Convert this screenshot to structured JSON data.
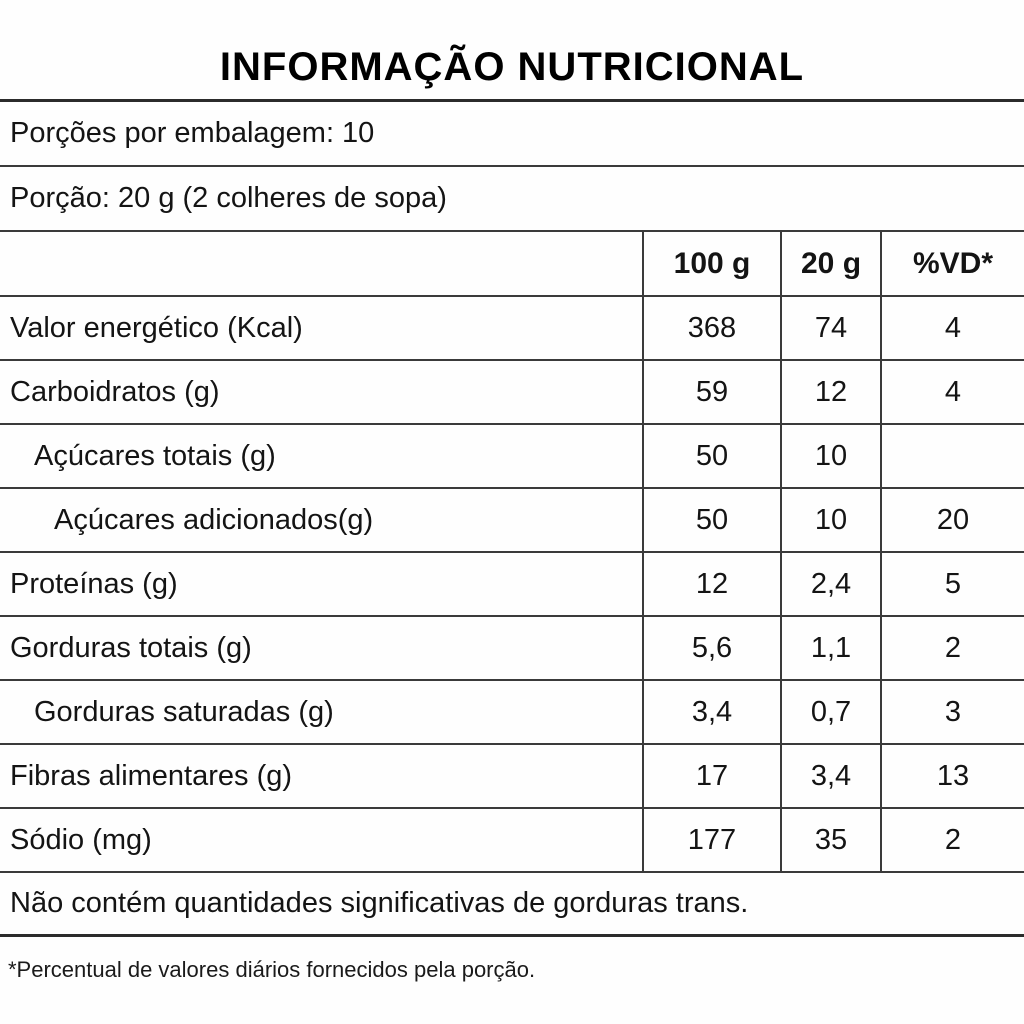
{
  "title": "INFORMAÇÃO NUTRICIONAL",
  "servings_line": "Porções por embalagem: 10",
  "portion_line": "Porção: 20 g (2 colheres de sopa)",
  "table": {
    "columns": {
      "label": "",
      "per100": "100 g",
      "per20": "20 g",
      "vd": "%VD*"
    },
    "rows": [
      {
        "label": "Valor energético (Kcal)",
        "indent": 0,
        "per100": "368",
        "per20": "74",
        "vd": "4"
      },
      {
        "label": "Carboidratos (g)",
        "indent": 0,
        "per100": "59",
        "per20": "12",
        "vd": "4"
      },
      {
        "label": "Açúcares totais (g)",
        "indent": 1,
        "per100": "50",
        "per20": "10",
        "vd": ""
      },
      {
        "label": "Açúcares adicionados(g)",
        "indent": 2,
        "per100": "50",
        "per20": "10",
        "vd": "20"
      },
      {
        "label": "Proteínas (g)",
        "indent": 0,
        "per100": "12",
        "per20": "2,4",
        "vd": "5"
      },
      {
        "label": "Gorduras totais (g)",
        "indent": 0,
        "per100": "5,6",
        "per20": "1,1",
        "vd": "2"
      },
      {
        "label": "Gorduras saturadas (g)",
        "indent": 1,
        "per100": "3,4",
        "per20": "0,7",
        "vd": "3"
      },
      {
        "label": "Fibras alimentares (g)",
        "indent": 0,
        "per100": "17",
        "per20": "3,4",
        "vd": "13"
      },
      {
        "label": "Sódio (mg)",
        "indent": 0,
        "per100": "177",
        "per20": "35",
        "vd": "2"
      }
    ]
  },
  "trans_fat_note": "Não contém quantidades significativas de gorduras trans.",
  "footnote": "*Percentual de valores diários fornecidos pela porção."
}
